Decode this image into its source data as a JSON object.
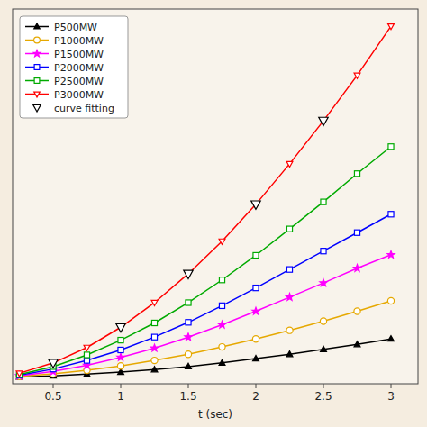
{
  "chart_data": {
    "type": "line",
    "xlabel": "t (sec)",
    "xlim": [
      0.2,
      3.2
    ],
    "ylim": [
      -0.05,
      3.0
    ],
    "xticks": [
      0.5,
      1.0,
      1.5,
      2.0,
      2.5,
      3.0
    ],
    "yticks": [],
    "tick_labels": "x",
    "grid": false,
    "legend": "upper left",
    "series": [
      {
        "name": "P500MW",
        "color": "#000000",
        "marker": "triangle-up",
        "x": [
          0.25,
          0.5,
          0.75,
          1.0,
          1.25,
          1.5,
          1.75,
          2.0,
          2.25,
          2.5,
          2.75,
          3.0
        ],
        "values": [
          0.005,
          0.015,
          0.028,
          0.045,
          0.065,
          0.09,
          0.12,
          0.155,
          0.19,
          0.23,
          0.27,
          0.315
        ]
      },
      {
        "name": "P1000MW",
        "color": "#e6a800",
        "marker": "circle",
        "x": [
          0.25,
          0.5,
          0.75,
          1.0,
          1.25,
          1.5,
          1.75,
          2.0,
          2.25,
          2.5,
          2.75,
          3.0
        ],
        "values": [
          0.01,
          0.03,
          0.06,
          0.095,
          0.14,
          0.19,
          0.25,
          0.315,
          0.385,
          0.46,
          0.54,
          0.625
        ]
      },
      {
        "name": "P1500MW",
        "color": "#ff00ff",
        "marker": "star",
        "x": [
          0.25,
          0.5,
          0.75,
          1.0,
          1.25,
          1.5,
          1.75,
          2.0,
          2.25,
          2.5,
          2.75,
          3.0
        ],
        "values": [
          0.015,
          0.05,
          0.1,
          0.165,
          0.24,
          0.33,
          0.43,
          0.54,
          0.655,
          0.77,
          0.89,
          1.0
        ]
      },
      {
        "name": "P2000MW",
        "color": "#0000ff",
        "marker": "square",
        "x": [
          0.25,
          0.5,
          0.75,
          1.0,
          1.25,
          1.5,
          1.75,
          2.0,
          2.25,
          2.5,
          2.75,
          3.0
        ],
        "values": [
          0.02,
          0.07,
          0.14,
          0.225,
          0.33,
          0.45,
          0.585,
          0.73,
          0.88,
          1.03,
          1.18,
          1.33
        ]
      },
      {
        "name": "P2500MW",
        "color": "#00aa00",
        "marker": "square",
        "x": [
          0.25,
          0.5,
          0.75,
          1.0,
          1.25,
          1.5,
          1.75,
          2.0,
          2.25,
          2.5,
          2.75,
          3.0
        ],
        "values": [
          0.025,
          0.09,
          0.185,
          0.305,
          0.445,
          0.61,
          0.795,
          0.995,
          1.21,
          1.43,
          1.66,
          1.88
        ]
      },
      {
        "name": "P3000MW",
        "color": "#ff0000",
        "marker": "triangle-down",
        "x": [
          0.25,
          0.5,
          0.75,
          1.0,
          1.25,
          1.5,
          1.75,
          2.0,
          2.25,
          2.5,
          2.75,
          3.0
        ],
        "values": [
          0.035,
          0.12,
          0.245,
          0.41,
          0.61,
          0.845,
          1.11,
          1.41,
          1.74,
          2.09,
          2.46,
          2.86
        ]
      },
      {
        "name": "curve fitting",
        "type": "scatter",
        "line_style": "none",
        "color": "#000000",
        "marker": "triangle-down",
        "x": [
          0.5,
          1.0,
          1.5,
          2.0,
          2.5
        ],
        "values": [
          0.12,
          0.41,
          0.845,
          1.41,
          2.09
        ]
      }
    ]
  }
}
